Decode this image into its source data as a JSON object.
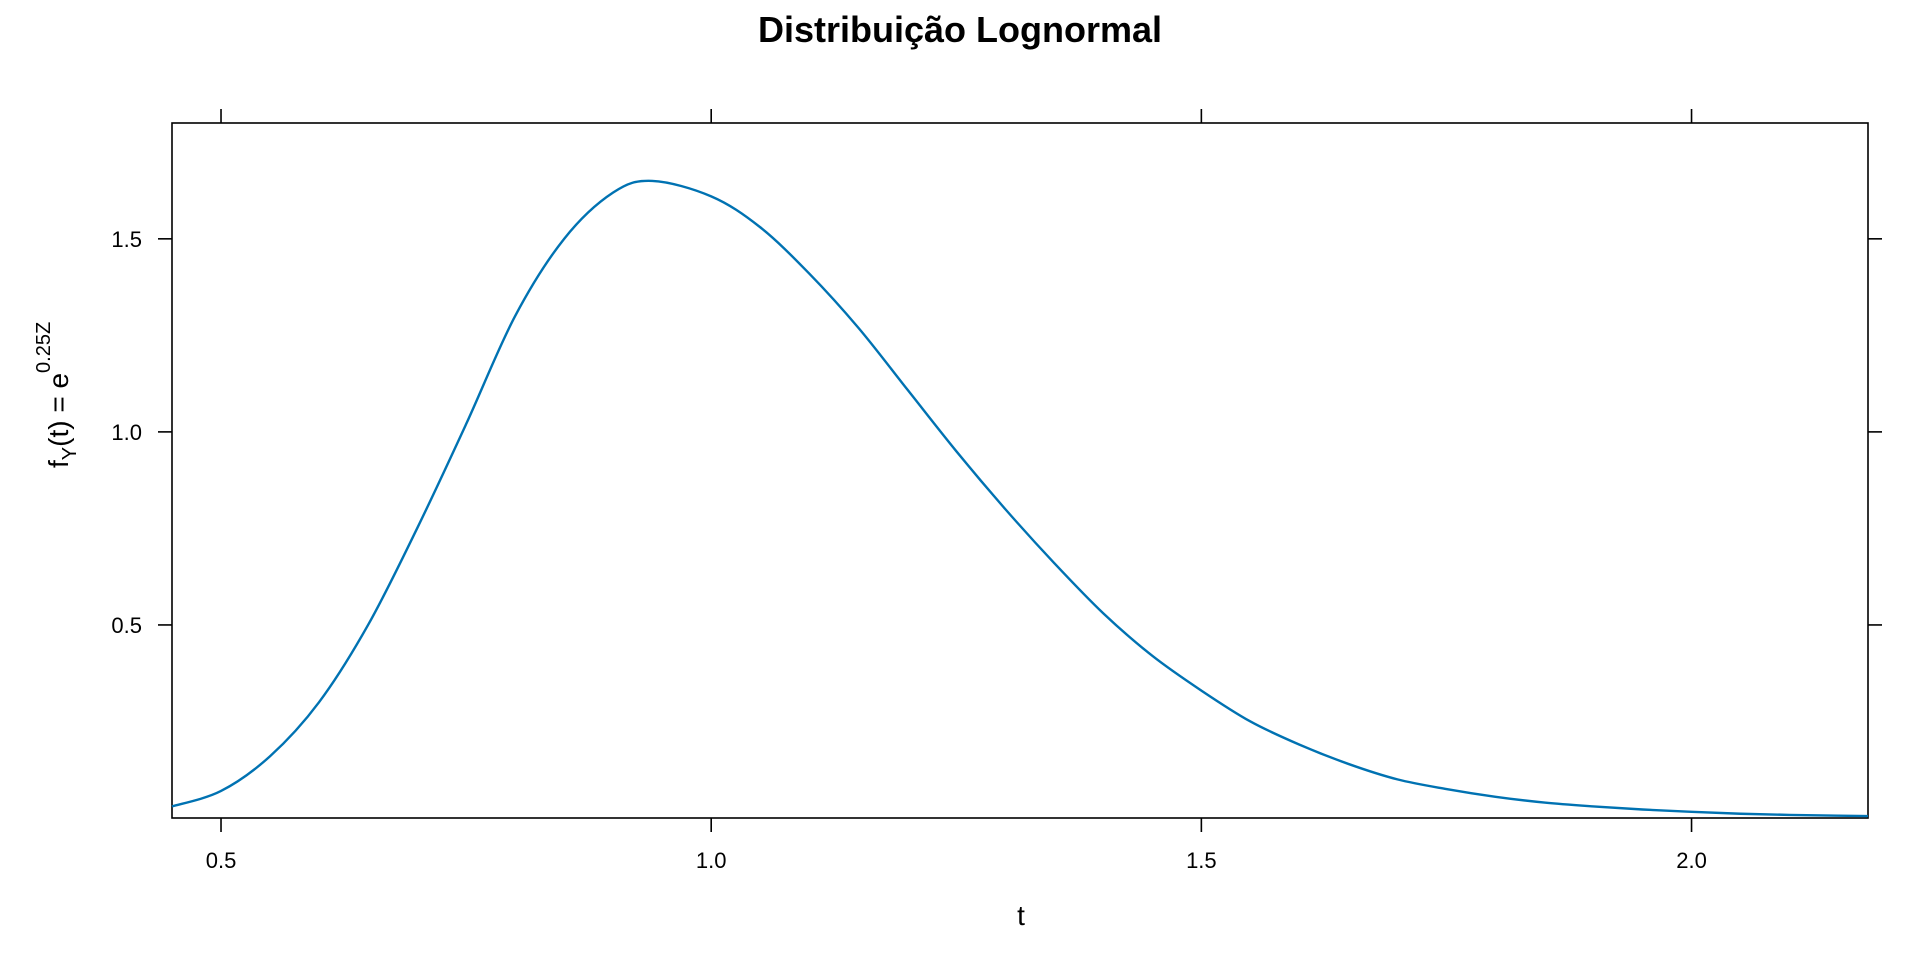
{
  "chart_data": {
    "type": "line",
    "title": "Distribuição Lognormal",
    "xlabel": "t",
    "ylabel": {
      "base": "f",
      "sub": "Y",
      "middle": "(t) = e",
      "sup": "0.25Z"
    },
    "xlim": [
      0.45,
      2.18
    ],
    "ylim": [
      0,
      1.8
    ],
    "x_ticks": [
      {
        "value": 0.5,
        "label": "0.5"
      },
      {
        "value": 1.0,
        "label": "1.0"
      },
      {
        "value": 1.5,
        "label": "1.5"
      },
      {
        "value": 2.0,
        "label": "2.0"
      }
    ],
    "y_ticks": [
      {
        "value": 0.5,
        "label": "0.5"
      },
      {
        "value": 1.0,
        "label": "1.0"
      },
      {
        "value": 1.5,
        "label": "1.5"
      }
    ],
    "line_color": "#0072B2",
    "grid": false,
    "series": [
      {
        "x": [
          0.45,
          0.5,
          0.55,
          0.6,
          0.65,
          0.7,
          0.75,
          0.8,
          0.85,
          0.9,
          0.94,
          1.0,
          1.05,
          1.1,
          1.15,
          1.2,
          1.25,
          1.3,
          1.35,
          1.4,
          1.45,
          1.5,
          1.55,
          1.6,
          1.65,
          1.7,
          1.75,
          1.8,
          1.85,
          1.9,
          1.95,
          2.0,
          2.05,
          2.1,
          2.15,
          2.18
        ],
        "y": [
          0.03,
          0.07,
          0.16,
          0.3,
          0.5,
          0.75,
          1.02,
          1.3,
          1.5,
          1.62,
          1.65,
          1.61,
          1.53,
          1.41,
          1.27,
          1.11,
          0.95,
          0.8,
          0.66,
          0.53,
          0.42,
          0.33,
          0.25,
          0.19,
          0.14,
          0.1,
          0.075,
          0.055,
          0.04,
          0.03,
          0.022,
          0.016,
          0.011,
          0.008,
          0.006,
          0.005
        ]
      }
    ]
  }
}
